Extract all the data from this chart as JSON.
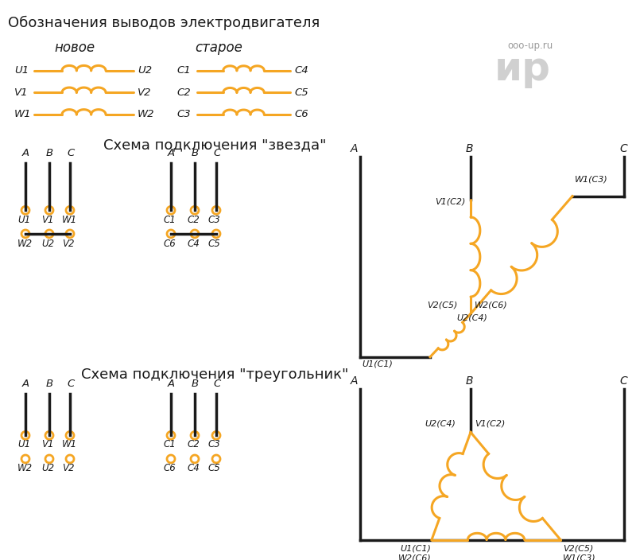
{
  "title_main": "Обозначения выводов электродвигателя",
  "label_new": "новое",
  "label_old": "старое",
  "orange": "#F5A623",
  "black": "#1a1a1a",
  "gray": "#999999",
  "bg": "#ffffff",
  "star_title": "Схема подключения \"звезда\"",
  "triangle_title": "Схема подключения \"треугольник\"",
  "watermark": "ooo-up.ru",
  "watermark2": "ир"
}
